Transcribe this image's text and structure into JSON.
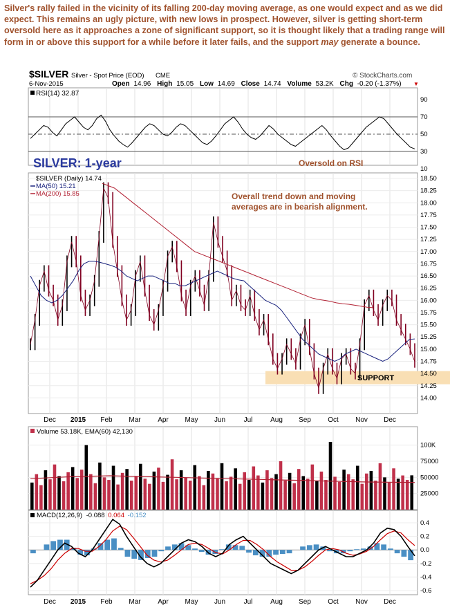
{
  "commentary": {
    "part1": "Silver's rally failed in the vicinity of its falling 200-day moving average, as one would expect and as we did expect. This remains an ugly picture, with new lows in prospect. However, silver is getting short-term oversold here as it approaches a zone of significant support, so it is thought likely that a trading range will form in or above this support for a while before it later fails, and the support ",
    "emphasis": "may",
    "part2": " generate a bounce."
  },
  "header": {
    "symbol": "$SILVER",
    "name": "Silver - Spot Price (EOD)",
    "exchange": "CME",
    "date": "6-Nov-2015",
    "watermark": "© StockCharts.com",
    "open_label": "Open",
    "open": "14.96",
    "high_label": "High",
    "high": "15.05",
    "low_label": "Low",
    "low": "14.69",
    "close_label": "Close",
    "close": "14.74",
    "volume_label": "Volume",
    "volume": "53.2K",
    "chg_label": "Chg",
    "chg": "-0.20 (-1.37%)"
  },
  "colors": {
    "commentary": "#a0522d",
    "title_blue": "#2b3a9e",
    "price": "#800020",
    "ma50": "#1a237e",
    "ma200": "#b22234",
    "support_band": "#f9dfb4",
    "volume_bar": "#c0304a",
    "macd_hist": "#4a8fc4"
  },
  "chart_data": [
    {
      "type": "line",
      "panel": "RSI",
      "legend": "RSI(14) 32.87",
      "y_ticks": [
        90,
        70,
        50,
        30,
        10
      ],
      "ylim": [
        10,
        90
      ],
      "reference_lines": [
        70,
        50,
        30
      ],
      "annotation": "Oversold on RSI",
      "series": [
        {
          "values": [
            45,
            50,
            55,
            60,
            58,
            52,
            48,
            55,
            62,
            66,
            70,
            64,
            58,
            55,
            60,
            68,
            72,
            65,
            55,
            48,
            42,
            38,
            35,
            40,
            46,
            52,
            58,
            62,
            60,
            55,
            50,
            48,
            52,
            58,
            62,
            60,
            55,
            50,
            45,
            40,
            38,
            42,
            48,
            55,
            62,
            66,
            70,
            64,
            56,
            50,
            46,
            44,
            48,
            54,
            60,
            56,
            50,
            46,
            42,
            38,
            36,
            40,
            44,
            48,
            52,
            56,
            60,
            55,
            48,
            42,
            36,
            32,
            34,
            40,
            46,
            52,
            58,
            62,
            66,
            70,
            68,
            62,
            56,
            50,
            45,
            40,
            35,
            33
          ]
        }
      ]
    },
    {
      "type": "line",
      "panel": "Price",
      "title": "SILVER: 1-year",
      "legend": [
        "$SILVER (Daily) 14.74",
        "MA(50) 15.21",
        "MA(200) 15.85"
      ],
      "annotation": "Overall trend down and moving averages are in bearish alignment.",
      "support_label": "SUPPORT",
      "support_range": [
        14.28,
        14.55
      ],
      "ylim": [
        13.85,
        18.5
      ],
      "y_ticks": [
        18.5,
        18.25,
        18.0,
        17.75,
        17.5,
        17.25,
        17.0,
        16.75,
        16.5,
        16.25,
        16.0,
        15.75,
        15.5,
        15.25,
        15.0,
        14.75,
        14.5,
        14.25,
        14.0
      ],
      "y_tick_labels": [
        "18.50",
        "18.25",
        "18.00",
        "17.75",
        "17.50",
        "17.25",
        "17.00",
        "16.75",
        "16.50",
        "16.25",
        "16.00",
        "15.75",
        "15.50",
        "15.25",
        "15.00",
        "14.75",
        "14.50",
        "14.25",
        "14.00"
      ],
      "series": [
        {
          "values": [
            15.1,
            15.6,
            16.3,
            16.6,
            16.2,
            16.0,
            15.6,
            15.9,
            16.8,
            17.2,
            16.8,
            16.1,
            15.8,
            16.0,
            16.4,
            17.3,
            18.3,
            18.1,
            17.2,
            16.6,
            16.0,
            15.6,
            15.8,
            16.5,
            16.8,
            16.2,
            15.7,
            15.5,
            15.8,
            16.3,
            16.9,
            17.1,
            16.7,
            16.1,
            15.8,
            16.3,
            16.5,
            16.2,
            15.9,
            16.5,
            17.6,
            17.2,
            16.9,
            16.6,
            16.0,
            16.2,
            15.9,
            15.8,
            16.1,
            15.7,
            15.4,
            15.6,
            15.2,
            14.8,
            14.6,
            14.8,
            15.1,
            14.9,
            14.7,
            15.2,
            15.5,
            15.0,
            14.5,
            14.2,
            14.6,
            14.9,
            14.6,
            14.4,
            14.8,
            14.9,
            14.6,
            14.5,
            15.1,
            15.9,
            16.1,
            15.8,
            15.6,
            15.9,
            16.1,
            16.0,
            15.6,
            15.4,
            15.2,
            15.0,
            14.74
          ]
        },
        {
          "values": [
            16.5,
            16.3,
            16.1,
            16.0,
            15.95,
            16.0,
            16.1,
            16.25,
            16.4,
            16.6,
            16.75,
            16.8,
            16.8,
            16.78,
            16.75,
            16.72,
            16.68,
            16.6,
            16.5,
            16.45,
            16.4,
            16.45,
            16.5,
            16.5,
            16.45,
            16.4,
            16.35,
            16.35,
            16.3,
            16.3,
            16.35,
            16.4,
            16.45,
            16.5,
            16.55,
            16.6,
            16.55,
            16.5,
            16.45,
            16.42,
            16.4,
            16.3,
            16.2,
            16.1,
            16.0,
            15.95,
            15.9,
            15.8,
            15.65,
            15.5,
            15.35,
            15.2,
            15.1,
            15.0,
            14.9,
            14.85,
            14.8,
            14.75,
            14.8,
            14.9,
            14.95,
            15.0,
            14.95,
            14.9,
            14.85,
            14.8,
            14.75,
            14.8,
            14.9,
            15.0,
            15.1,
            15.2,
            15.21
          ]
        },
        {
          "values": [
            18.4,
            18.35,
            18.3,
            18.2,
            18.1,
            18.0,
            17.9,
            17.8,
            17.7,
            17.6,
            17.5,
            17.4,
            17.3,
            17.2,
            17.1,
            17.0,
            16.95,
            16.9,
            16.85,
            16.8,
            16.75,
            16.7,
            16.65,
            16.6,
            16.55,
            16.5,
            16.45,
            16.4,
            16.35,
            16.3,
            16.25,
            16.2,
            16.15,
            16.1,
            16.05,
            16.02,
            16.0,
            15.98,
            15.95,
            15.93,
            15.92,
            15.9,
            15.88,
            15.86,
            15.85
          ]
        }
      ]
    },
    {
      "type": "bar",
      "panel": "Volume",
      "legend": "Volume 53.18K, EMA(60) 42,130",
      "ylim": [
        0,
        120000
      ],
      "y_ticks": [
        100000,
        75000,
        50000,
        25000
      ],
      "y_tick_labels": [
        "100K",
        "75000",
        "50000",
        "25000"
      ],
      "values": [
        42000,
        55000,
        38000,
        61000,
        47000,
        70000,
        52000,
        44000,
        58000,
        66000,
        49000,
        62000,
        100000,
        55000,
        41000,
        73000,
        50000,
        46000,
        68000,
        39000,
        57000,
        63000,
        45000,
        52000,
        71000,
        48000,
        40000,
        59000,
        65000,
        43000,
        54000,
        78000,
        47000,
        61000,
        50000,
        45000,
        69000,
        52000,
        38000,
        60000,
        56000,
        48000,
        72000,
        44000,
        51000,
        64000,
        40000,
        58000,
        46000,
        67000,
        53000,
        42000,
        61000,
        49000,
        55000,
        75000,
        45000,
        57000,
        41000,
        63000,
        52000,
        48000,
        70000,
        44000,
        59000,
        46000,
        105000,
        51000,
        43000,
        62000,
        55000,
        47000,
        68000,
        40000,
        56000,
        60000,
        45000,
        72000,
        50000,
        42000,
        64000,
        48000,
        53000,
        46000,
        53180
      ],
      "ema_values": [
        48000,
        49000,
        50000,
        51000,
        51500,
        52000,
        52500,
        52000,
        51500,
        51000,
        50500,
        50000,
        49500,
        49000,
        48500,
        48000,
        47500,
        47000,
        46500,
        46000,
        45500,
        45000,
        44500,
        44000,
        43500,
        43000,
        42800,
        42500,
        42300,
        42130
      ]
    },
    {
      "type": "line",
      "panel": "MACD",
      "legend": [
        "MACD(12,26,9)",
        "-0.088",
        "0.064",
        "-0.152"
      ],
      "ylim": [
        -0.6,
        0.4
      ],
      "y_ticks": [
        0.4,
        0.2,
        0.0,
        -0.2,
        -0.4,
        -0.6
      ],
      "y_tick_labels": [
        "0.4",
        "0.2",
        "0.0",
        "-0.2",
        "-0.4",
        "-0.6"
      ],
      "series": [
        {
          "values": [
            -0.55,
            -0.45,
            -0.3,
            -0.15,
            0.0,
            0.1,
            0.05,
            -0.05,
            -0.1,
            0.0,
            0.15,
            0.3,
            0.45,
            0.38,
            0.2,
            0.05,
            -0.1,
            -0.2,
            -0.25,
            -0.2,
            -0.1,
            0.0,
            0.1,
            0.15,
            0.12,
            0.05,
            -0.05,
            -0.1,
            -0.05,
            0.08,
            0.15,
            0.2,
            0.1,
            0.0,
            -0.1,
            -0.2,
            -0.25,
            -0.3,
            -0.35,
            -0.3,
            -0.2,
            -0.1,
            0.0,
            0.05,
            0.0,
            -0.05,
            -0.1,
            -0.1,
            -0.05,
            0.0,
            0.1,
            0.25,
            0.32,
            0.3,
            0.2,
            0.05,
            -0.088
          ]
        },
        {
          "values": [
            -0.5,
            -0.45,
            -0.38,
            -0.28,
            -0.15,
            -0.05,
            0.02,
            0.02,
            -0.02,
            -0.02,
            0.05,
            0.15,
            0.28,
            0.35,
            0.3,
            0.18,
            0.05,
            -0.08,
            -0.15,
            -0.18,
            -0.15,
            -0.08,
            0.0,
            0.08,
            0.1,
            0.08,
            0.02,
            -0.04,
            -0.06,
            0.0,
            0.08,
            0.14,
            0.14,
            0.08,
            0.0,
            -0.1,
            -0.18,
            -0.24,
            -0.3,
            -0.3,
            -0.25,
            -0.17,
            -0.08,
            0.0,
            0.02,
            0.0,
            -0.05,
            -0.08,
            -0.06,
            -0.02,
            0.05,
            0.15,
            0.24,
            0.28,
            0.25,
            0.15,
            0.064
          ]
        },
        {
          "values": [
            -0.05,
            0.0,
            0.08,
            0.13,
            0.15,
            0.15,
            0.03,
            -0.07,
            -0.08,
            0.02,
            0.1,
            0.15,
            0.17,
            0.03,
            -0.1,
            -0.13,
            -0.15,
            -0.12,
            -0.1,
            -0.02,
            0.05,
            0.08,
            0.1,
            0.07,
            0.02,
            -0.03,
            -0.07,
            -0.06,
            0.01,
            0.08,
            0.07,
            0.06,
            -0.04,
            -0.08,
            -0.1,
            -0.1,
            -0.07,
            -0.06,
            -0.05,
            0.0,
            0.05,
            0.07,
            0.08,
            0.05,
            -0.02,
            -0.05,
            -0.05,
            -0.02,
            0.01,
            0.02,
            0.05,
            0.1,
            0.08,
            0.02,
            -0.05,
            -0.1,
            -0.152
          ]
        }
      ]
    }
  ],
  "x_axis": {
    "labels": [
      "Dec",
      "2015",
      "Feb",
      "Mar",
      "Apr",
      "May",
      "Jun",
      "Jul",
      "Aug",
      "Sep",
      "Oct",
      "Nov",
      "Dec"
    ],
    "bold_labels": [
      "2015"
    ]
  }
}
